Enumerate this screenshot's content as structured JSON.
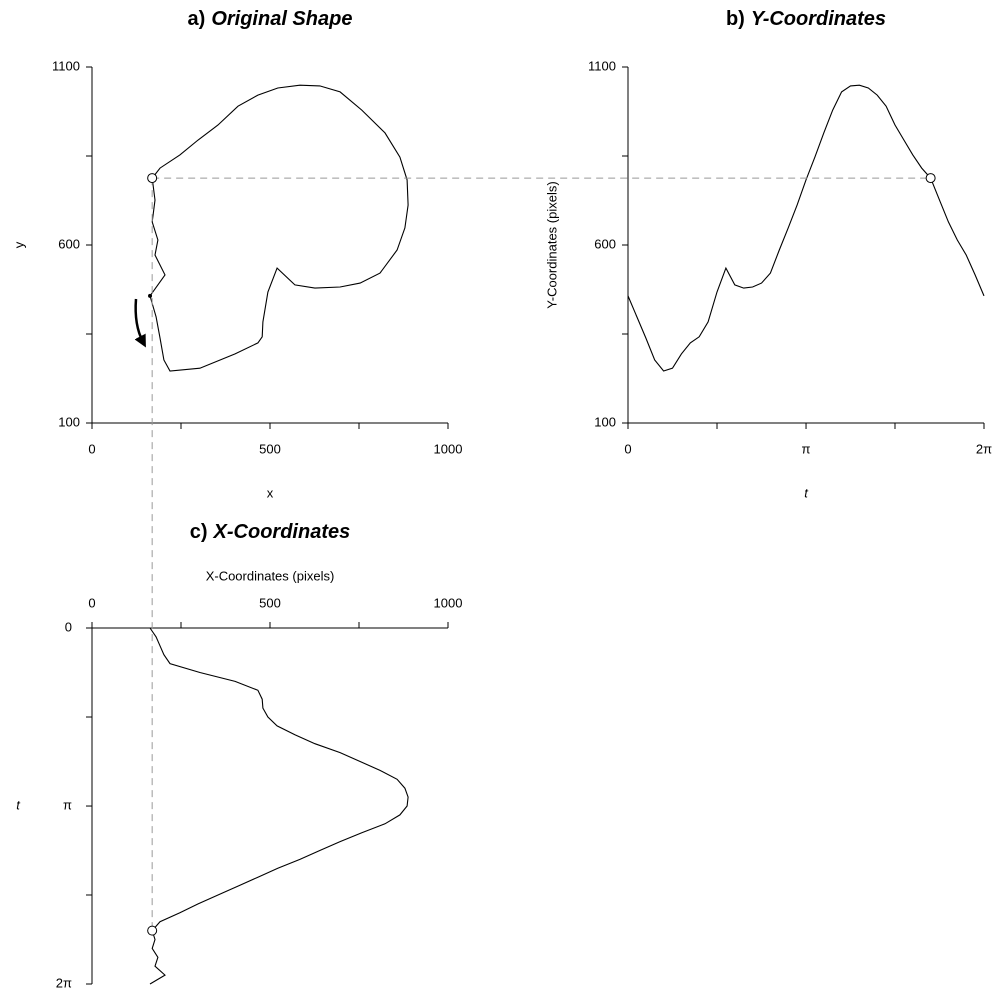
{
  "chart_data": [
    {
      "type": "path",
      "label": "a)",
      "title": "Original Shape",
      "xlabel": "x",
      "ylabel": "y",
      "xlim": [
        0,
        1000
      ],
      "ylim": [
        100,
        1100
      ],
      "xticks": [
        0,
        500,
        1000
      ],
      "yticks": [
        100,
        600,
        1100
      ],
      "xminor": [
        250,
        750
      ],
      "yminor": [
        350,
        850
      ],
      "color": "#000000",
      "start_marker": true,
      "x": [
        163,
        180,
        191,
        202,
        219,
        303,
        402,
        466,
        478,
        480,
        494,
        520,
        570,
        626,
        697,
        753,
        809,
        857,
        879,
        888,
        885,
        865,
        823,
        758,
        697,
        640,
        584,
        522,
        466,
        410,
        354,
        298,
        247,
        191,
        169,
        177,
        169,
        185,
        177,
        205,
        163
      ],
      "y": [
        457,
        398,
        339,
        277,
        246,
        254,
        294,
        325,
        342,
        384,
        468,
        535,
        488,
        479,
        482,
        493,
        521,
        586,
        648,
        712,
        783,
        847,
        915,
        979,
        1030,
        1047,
        1049,
        1041,
        1021,
        990,
        937,
        895,
        853,
        816,
        788,
        726,
        665,
        614,
        572,
        516,
        457
      ],
      "highlight": {
        "x": 169,
        "y": 788
      }
    },
    {
      "type": "line",
      "label": "b)",
      "title": "Y-Coordinates",
      "xlabel": "t",
      "ylabel": "Y-Coordinates (pixels)",
      "xlim": [
        0,
        6.283
      ],
      "ylim": [
        100,
        1100
      ],
      "xticks": [
        0,
        {
          "value": 3.142,
          "label": "π"
        },
        {
          "value": 6.283,
          "label": "2π"
        }
      ],
      "yticks": [
        100,
        600,
        1100
      ],
      "xminor": [
        1.571,
        4.712
      ],
      "yminor": [
        350,
        850
      ],
      "color": "#000000",
      "x": [
        0,
        0.157,
        0.314,
        0.471,
        0.628,
        0.785,
        0.942,
        1.1,
        1.257,
        1.414,
        1.571,
        1.728,
        1.885,
        2.042,
        2.199,
        2.356,
        2.513,
        2.67,
        2.827,
        2.985,
        3.142,
        3.299,
        3.456,
        3.613,
        3.77,
        3.927,
        4.084,
        4.241,
        4.398,
        4.555,
        4.712,
        4.869,
        5.027,
        5.184,
        5.341,
        5.498,
        5.655,
        5.812,
        5.969,
        6.126,
        6.283
      ],
      "values": [
        457,
        398,
        339,
        277,
        246,
        254,
        294,
        325,
        342,
        384,
        468,
        535,
        488,
        479,
        482,
        493,
        521,
        586,
        648,
        712,
        783,
        847,
        915,
        979,
        1030,
        1047,
        1049,
        1041,
        1021,
        990,
        937,
        895,
        853,
        816,
        788,
        726,
        665,
        614,
        572,
        516,
        457
      ],
      "highlight": {
        "x": 5.341,
        "y": 788
      }
    },
    {
      "type": "line",
      "orientation": "vertical",
      "label": "c)",
      "title": "X-Coordinates",
      "xlabel": "t",
      "ylabel": "X-Coordinates (pixels)",
      "xlim": [
        0,
        6.283
      ],
      "ylim": [
        0,
        1000
      ],
      "xticks": [
        0,
        {
          "value": 3.142,
          "label": "π"
        },
        {
          "value": 6.283,
          "label": "2π"
        }
      ],
      "yticks": [
        0,
        500,
        1000
      ],
      "xminor": [
        1.571,
        4.712
      ],
      "yminor": [
        250,
        750
      ],
      "color": "#000000",
      "x": [
        0,
        0.157,
        0.314,
        0.471,
        0.628,
        0.785,
        0.942,
        1.1,
        1.257,
        1.414,
        1.571,
        1.728,
        1.885,
        2.042,
        2.199,
        2.356,
        2.513,
        2.67,
        2.827,
        2.985,
        3.142,
        3.299,
        3.456,
        3.613,
        3.77,
        3.927,
        4.084,
        4.241,
        4.398,
        4.555,
        4.712,
        4.869,
        5.027,
        5.184,
        5.341,
        5.498,
        5.655,
        5.812,
        5.969,
        6.126,
        6.283
      ],
      "values": [
        163,
        180,
        191,
        202,
        219,
        303,
        402,
        466,
        478,
        480,
        494,
        520,
        570,
        626,
        697,
        753,
        809,
        857,
        879,
        888,
        885,
        865,
        823,
        758,
        697,
        640,
        584,
        522,
        466,
        410,
        354,
        298,
        247,
        191,
        169,
        177,
        169,
        185,
        177,
        205,
        163
      ],
      "highlight": {
        "x": 5.341,
        "y": 169
      }
    }
  ]
}
